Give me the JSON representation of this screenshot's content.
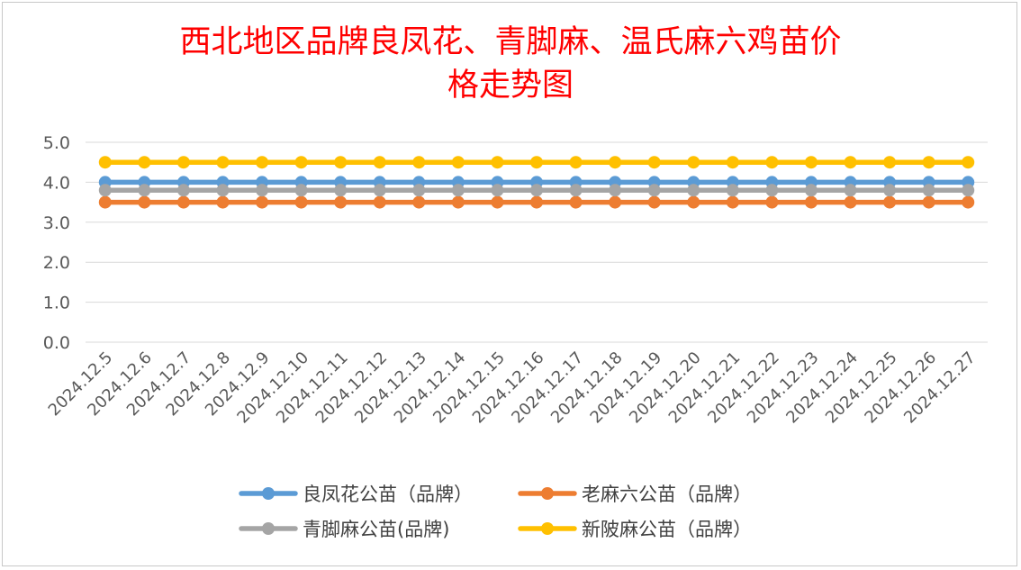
{
  "chart_data": {
    "type": "line",
    "title_lines": [
      "西北地区品牌良凤花、青脚麻、温氏麻六鸡苗价",
      "格走势图"
    ],
    "xlabel": "",
    "ylabel": "",
    "ylim": [
      0,
      5
    ],
    "yticks": [
      "0.0",
      "1.0",
      "2.0",
      "3.0",
      "4.0",
      "5.0"
    ],
    "grid": true,
    "legend_position": "bottom",
    "categories": [
      "2024.12.5",
      "2024.12.6",
      "2024.12.7",
      "2024.12.8",
      "2024.12.9",
      "2024.12.10",
      "2024.12.11",
      "2024.12.12",
      "2024.12.13",
      "2024.12.14",
      "2024.12.15",
      "2024.12.16",
      "2024.12.17",
      "2024.12.18",
      "2024.12.19",
      "2024.12.20",
      "2024.12.21",
      "2024.12.22",
      "2024.12.23",
      "2024.12.24",
      "2024.12.25",
      "2024.12.26",
      "2024.12.27"
    ],
    "series": [
      {
        "name": "良凤花公苗（品牌）",
        "color": "#5b9bd5",
        "values": [
          4.0,
          4.0,
          4.0,
          4.0,
          4.0,
          4.0,
          4.0,
          4.0,
          4.0,
          4.0,
          4.0,
          4.0,
          4.0,
          4.0,
          4.0,
          4.0,
          4.0,
          4.0,
          4.0,
          4.0,
          4.0,
          4.0,
          4.0
        ]
      },
      {
        "name": "老麻六公苗（品牌）",
        "color": "#ed7d31",
        "values": [
          3.5,
          3.5,
          3.5,
          3.5,
          3.5,
          3.5,
          3.5,
          3.5,
          3.5,
          3.5,
          3.5,
          3.5,
          3.5,
          3.5,
          3.5,
          3.5,
          3.5,
          3.5,
          3.5,
          3.5,
          3.5,
          3.5,
          3.5
        ]
      },
      {
        "name": "青脚麻公苗(品牌)",
        "color": "#a5a5a5",
        "values": [
          3.8,
          3.8,
          3.8,
          3.8,
          3.8,
          3.8,
          3.8,
          3.8,
          3.8,
          3.8,
          3.8,
          3.8,
          3.8,
          3.8,
          3.8,
          3.8,
          3.8,
          3.8,
          3.8,
          3.8,
          3.8,
          3.8,
          3.8
        ]
      },
      {
        "name": "新陂麻公苗（品牌）",
        "color": "#ffc000",
        "values": [
          4.5,
          4.5,
          4.5,
          4.5,
          4.5,
          4.5,
          4.5,
          4.5,
          4.5,
          4.5,
          4.5,
          4.5,
          4.5,
          4.5,
          4.5,
          4.5,
          4.5,
          4.5,
          4.5,
          4.5,
          4.5,
          4.5,
          4.5
        ]
      }
    ]
  }
}
